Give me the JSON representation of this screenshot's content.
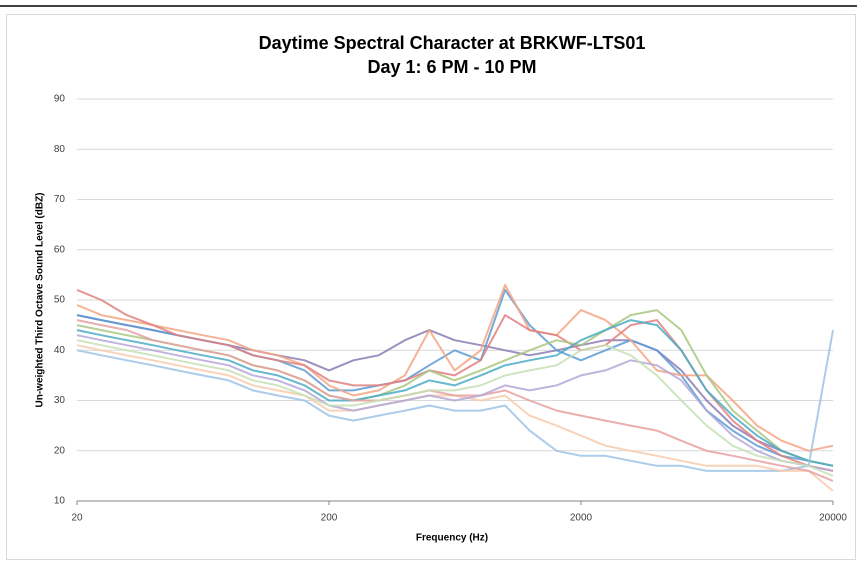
{
  "chart_data": {
    "type": "line",
    "title": "Daytime Spectral Character at BRKWF-LTS01",
    "subtitle": "Day 1: 6 PM - 10 PM",
    "x_label": "Frequency (Hz)",
    "y_label": "Un-weighted Third Octave Sound Level (dBZ)",
    "x_scale": "log",
    "grid": true,
    "xlim": [
      20,
      20000
    ],
    "xticks": [
      20,
      200,
      2000,
      20000
    ],
    "ylim": [
      10,
      90
    ],
    "yticks": [
      10,
      20,
      30,
      40,
      50,
      60,
      70,
      80,
      90
    ],
    "x": [
      20,
      25,
      31.5,
      40,
      50,
      63,
      80,
      100,
      125,
      160,
      200,
      250,
      315,
      400,
      500,
      630,
      800,
      1000,
      1250,
      1600,
      2000,
      2500,
      3150,
      4000,
      5000,
      6300,
      8000,
      10000,
      12500,
      16000,
      20000
    ],
    "series": [
      {
        "color": "#8c7bb5",
        "values": [
          47,
          46,
          45,
          44,
          43,
          42,
          41,
          40,
          39,
          38,
          36,
          38,
          39,
          42,
          44,
          42,
          41,
          40,
          39,
          40,
          41,
          42,
          42,
          40,
          36,
          30,
          25,
          22,
          20,
          18,
          17
        ]
      },
      {
        "color": "#5b9bd5",
        "values": [
          47,
          46,
          45,
          44,
          43,
          42,
          41,
          39,
          38,
          36,
          32,
          32,
          33,
          34,
          37,
          40,
          38,
          52,
          45,
          40,
          38,
          40,
          42,
          40,
          35,
          28,
          24,
          21,
          19,
          18,
          17
        ]
      },
      {
        "color": "#f4a582",
        "values": [
          49,
          47,
          46,
          45,
          44,
          43,
          42,
          40,
          39,
          37,
          33,
          31,
          32,
          35,
          44,
          36,
          40,
          53,
          44,
          43,
          48,
          46,
          42,
          36,
          35,
          35,
          30,
          25,
          22,
          20,
          21
        ]
      },
      {
        "color": "#e08080",
        "values": [
          52,
          50,
          47,
          45,
          43,
          42,
          41,
          39,
          38,
          37,
          34,
          33,
          33,
          34,
          36,
          35,
          38,
          47,
          44,
          43,
          40,
          41,
          45,
          46,
          40,
          32,
          26,
          22,
          19,
          17,
          16
        ]
      },
      {
        "color": "#a9c77f",
        "values": [
          45,
          44,
          43,
          42,
          41,
          40,
          39,
          37,
          36,
          34,
          31,
          30,
          31,
          33,
          36,
          34,
          36,
          38,
          40,
          42,
          41,
          44,
          47,
          48,
          44,
          35,
          28,
          24,
          20,
          18,
          17
        ]
      },
      {
        "color": "#4bacc6",
        "values": [
          44,
          43,
          42,
          41,
          40,
          39,
          38,
          36,
          35,
          33,
          30,
          30,
          31,
          32,
          34,
          33,
          35,
          37,
          38,
          39,
          42,
          44,
          46,
          45,
          40,
          32,
          27,
          23,
          20,
          18,
          17
        ]
      },
      {
        "color": "#9dc3e6",
        "values": [
          40,
          39,
          38,
          37,
          36,
          35,
          34,
          32,
          31,
          30,
          27,
          26,
          27,
          28,
          29,
          28,
          28,
          29,
          24,
          20,
          19,
          19,
          18,
          17,
          17,
          16,
          16,
          16,
          16,
          17,
          44
        ]
      },
      {
        "color": "#f8cbad",
        "values": [
          41,
          40,
          39,
          38,
          37,
          36,
          35,
          33,
          32,
          31,
          28,
          28,
          29,
          30,
          31,
          31,
          30,
          31,
          27,
          25,
          23,
          21,
          20,
          19,
          18,
          17,
          17,
          17,
          16,
          16,
          12
        ]
      },
      {
        "color": "#e6a0a0",
        "values": [
          46,
          45,
          44,
          42,
          41,
          40,
          39,
          37,
          36,
          34,
          31,
          30,
          30,
          31,
          32,
          31,
          31,
          32,
          30,
          28,
          27,
          26,
          25,
          24,
          22,
          20,
          19,
          18,
          17,
          16,
          14
        ]
      },
      {
        "color": "#b4a7d6",
        "values": [
          43,
          42,
          41,
          40,
          39,
          38,
          37,
          35,
          34,
          32,
          29,
          28,
          29,
          30,
          31,
          30,
          31,
          33,
          32,
          33,
          35,
          36,
          38,
          37,
          34,
          28,
          23,
          20,
          18,
          17,
          16
        ]
      },
      {
        "color": "#c5e0b4",
        "values": [
          42,
          41,
          40,
          39,
          38,
          37,
          36,
          34,
          33,
          31,
          29,
          29,
          30,
          31,
          32,
          32,
          33,
          35,
          36,
          37,
          40,
          41,
          39,
          35,
          30,
          25,
          21,
          19,
          18,
          17,
          15
        ]
      }
    ]
  }
}
